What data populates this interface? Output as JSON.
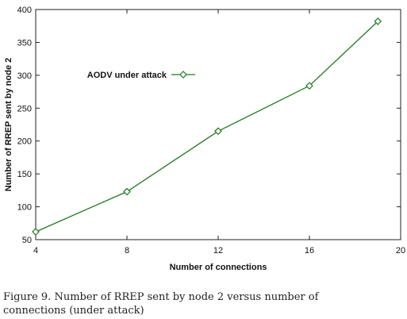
{
  "caption": "Figure 9. Number of RREP sent by node 2 versus number of connections (under attack)",
  "chart_data": {
    "type": "line",
    "title": "",
    "xlabel": "Number of connections",
    "ylabel": "Number of RREP sent by node 2",
    "xlim": [
      4,
      20
    ],
    "ylim": [
      50,
      400
    ],
    "xticks": [
      4,
      8,
      12,
      16,
      20
    ],
    "yticks": [
      50,
      100,
      150,
      200,
      250,
      300,
      350,
      400
    ],
    "grid": false,
    "legend_position": "upper-left",
    "series": [
      {
        "name": "AODV under attack",
        "color": "#1e7a1e",
        "marker": "diamond",
        "x": [
          4,
          8,
          12,
          16,
          19
        ],
        "y": [
          62,
          123,
          215,
          284,
          382
        ]
      }
    ]
  }
}
